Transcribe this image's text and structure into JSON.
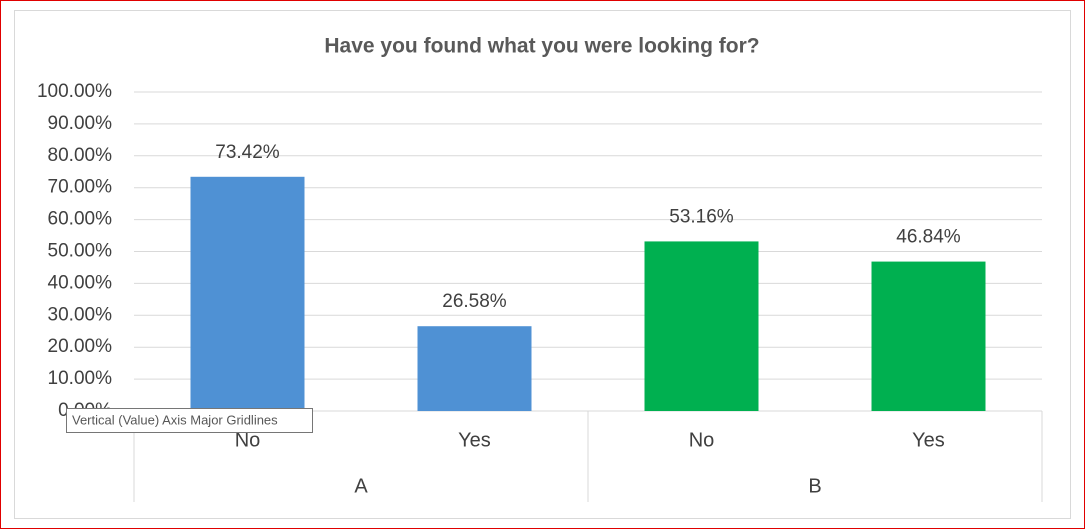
{
  "chart_data": {
    "type": "bar",
    "title": "Have you found what you were looking for?",
    "categories": [
      "No",
      "Yes",
      "No",
      "Yes"
    ],
    "groups": [
      "A",
      "B"
    ],
    "values": [
      73.42,
      26.58,
      53.16,
      46.84
    ],
    "value_labels": [
      "73.42%",
      "26.58%",
      "53.16%",
      "46.84%"
    ],
    "colors": [
      "#4f91d4",
      "#4f91d4",
      "#00b050",
      "#00b050"
    ],
    "ylim": [
      0,
      100
    ],
    "yticks": [
      {
        "value": 0,
        "label": "0.00%"
      },
      {
        "value": 10,
        "label": "10.00%"
      },
      {
        "value": 20,
        "label": "20.00%"
      },
      {
        "value": 30,
        "label": "30.00%"
      },
      {
        "value": 40,
        "label": "40.00%"
      },
      {
        "value": 50,
        "label": "50.00%"
      },
      {
        "value": 60,
        "label": "60.00%"
      },
      {
        "value": 70,
        "label": "70.00%"
      },
      {
        "value": 80,
        "label": "80.00%"
      },
      {
        "value": 90,
        "label": "90.00%"
      },
      {
        "value": 100,
        "label": "100.00%"
      }
    ],
    "grid": true
  },
  "tooltip": "Vertical (Value) Axis Major Gridlines"
}
